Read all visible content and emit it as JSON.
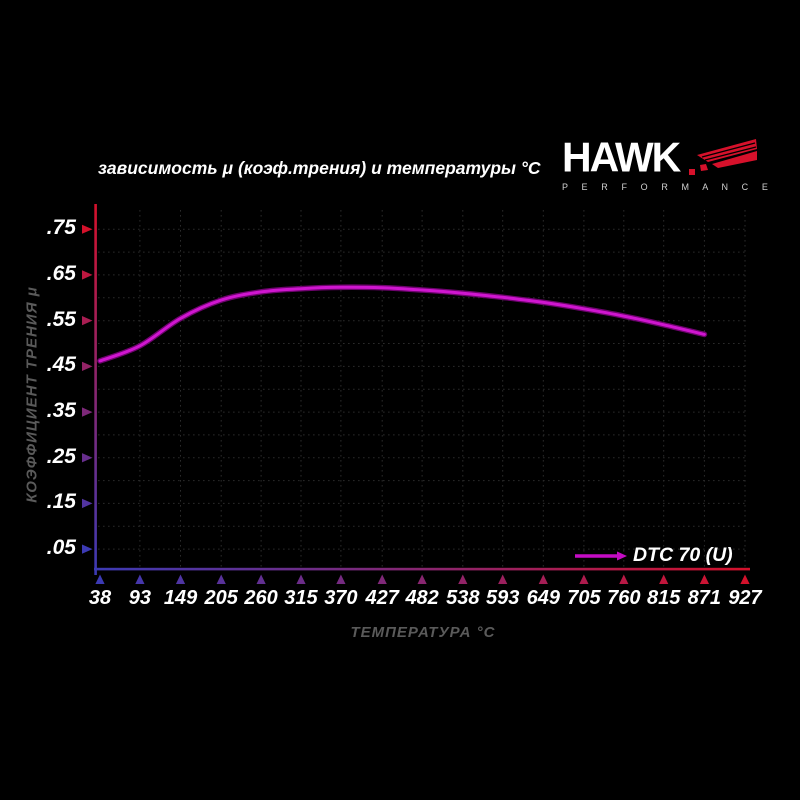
{
  "logo": {
    "brand": "HAWK",
    "sub": "P E R F O R M A N C E"
  },
  "chart_data": {
    "type": "line",
    "title": "зависимость μ (коэф.трения) и температуры °C",
    "xlabel": "ТЕМПЕРАТУРА °C",
    "ylabel": "КОЭФФИЦИЕНТ ТРЕНИЯ μ",
    "x_ticks": [
      38,
      93,
      149,
      205,
      260,
      315,
      370,
      427,
      482,
      538,
      593,
      649,
      705,
      760,
      815,
      871,
      927
    ],
    "y_ticks": [
      {
        "label": ".05",
        "value": 0.05
      },
      {
        "label": ".15",
        "value": 0.15
      },
      {
        "label": ".25",
        "value": 0.25
      },
      {
        "label": ".35",
        "value": 0.35
      },
      {
        "label": ".45",
        "value": 0.45
      },
      {
        "label": ".55",
        "value": 0.55
      },
      {
        "label": ".65",
        "value": 0.65
      },
      {
        "label": ".75",
        "value": 0.75
      }
    ],
    "ylim": [
      0,
      0.8
    ],
    "grid": "dotted",
    "legend_position": "bottom-right",
    "series": [
      {
        "name": "DTC 70 (U)",
        "color": "#c40cc4",
        "x": [
          38,
          93,
          149,
          205,
          260,
          315,
          370,
          427,
          482,
          538,
          593,
          649,
          705,
          760,
          815,
          871
        ],
        "y": [
          0.462,
          0.495,
          0.555,
          0.595,
          0.613,
          0.62,
          0.623,
          0.622,
          0.617,
          0.61,
          0.601,
          0.59,
          0.576,
          0.56,
          0.541,
          0.52
        ]
      }
    ],
    "colors": {
      "background": "#000000",
      "grid": "#2b2b2b",
      "axis_hot": "#d4112b",
      "axis_cold": "#3c3ab4",
      "tick_text": "#ffffff",
      "axis_label_text": "#5a5a5a",
      "curve_core": "#cf16cf",
      "curve_edge": "#6d036d",
      "logo_red": "#d6112b"
    }
  }
}
